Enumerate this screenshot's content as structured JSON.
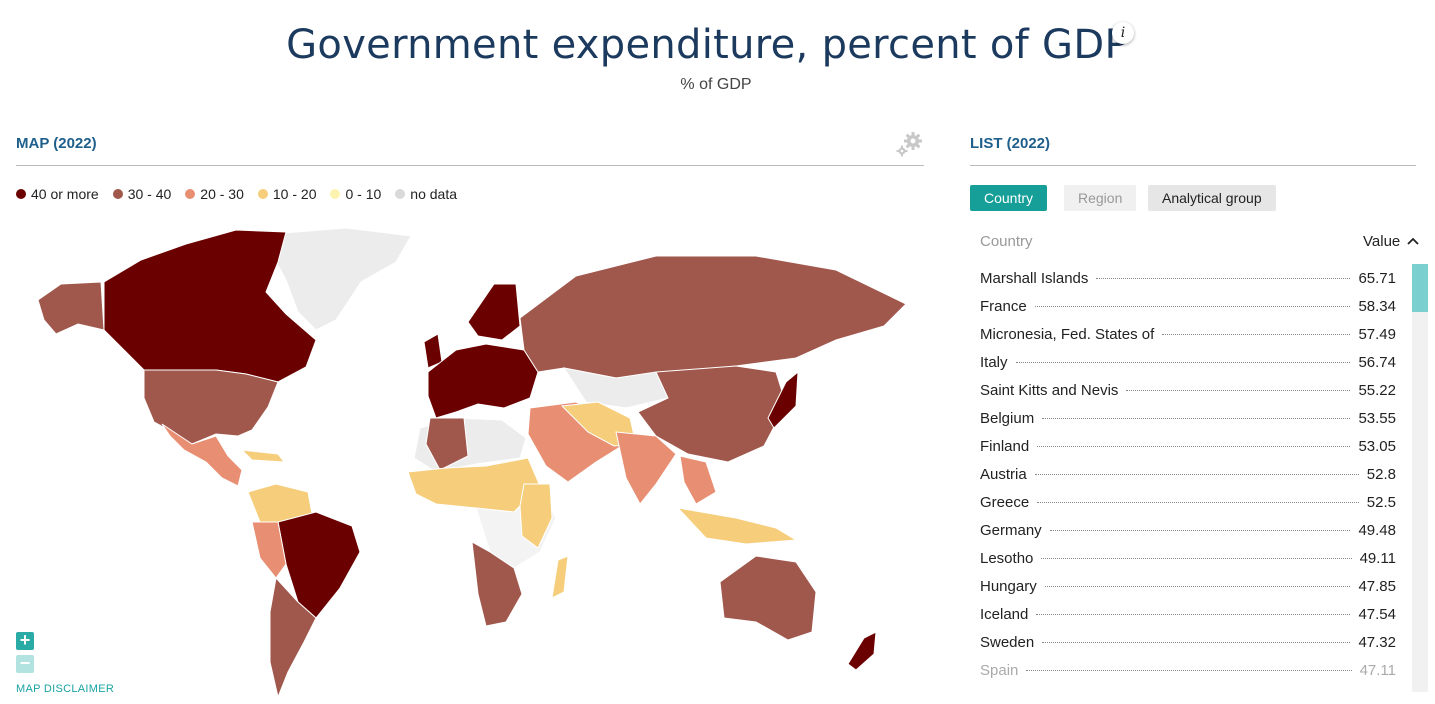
{
  "header": {
    "title": "Government expenditure, percent of GDP",
    "info_icon": "i",
    "subtitle": "% of GDP"
  },
  "map_panel": {
    "title": "MAP (2022)",
    "legend": [
      {
        "label": "40 or more",
        "color": "#6b0000"
      },
      {
        "label": "30 - 40",
        "color": "#a0574c"
      },
      {
        "label": "20 - 30",
        "color": "#e88e72"
      },
      {
        "label": "10 - 20",
        "color": "#f6cd7a"
      },
      {
        "label": "0 - 10",
        "color": "#fdf3b0"
      },
      {
        "label": "no data",
        "color": "#d9d9d9"
      }
    ],
    "zoom_in": "+",
    "zoom_out": "−",
    "disclaimer": "MAP DISCLAIMER"
  },
  "list_panel": {
    "title": "LIST (2022)",
    "tabs": [
      {
        "label": "Country",
        "state": "active"
      },
      {
        "label": "Region",
        "state": "disabled"
      },
      {
        "label": "Analytical group",
        "state": "normal"
      }
    ],
    "column_country": "Country",
    "column_value": "Value",
    "sort_icon": "^",
    "rows": [
      {
        "country": "Marshall Islands",
        "value": "65.71"
      },
      {
        "country": "France",
        "value": "58.34"
      },
      {
        "country": "Micronesia, Fed. States of",
        "value": "57.49"
      },
      {
        "country": "Italy",
        "value": "56.74"
      },
      {
        "country": "Saint Kitts and Nevis",
        "value": "55.22"
      },
      {
        "country": "Belgium",
        "value": "53.55"
      },
      {
        "country": "Finland",
        "value": "53.05"
      },
      {
        "country": "Austria",
        "value": "52.8"
      },
      {
        "country": "Greece",
        "value": "52.5"
      },
      {
        "country": "Germany",
        "value": "49.48"
      },
      {
        "country": "Lesotho",
        "value": "49.11"
      },
      {
        "country": "Hungary",
        "value": "47.85"
      },
      {
        "country": "Iceland",
        "value": "47.54"
      },
      {
        "country": "Sweden",
        "value": "47.32"
      },
      {
        "country": "Spain",
        "value": "47.11"
      }
    ]
  }
}
